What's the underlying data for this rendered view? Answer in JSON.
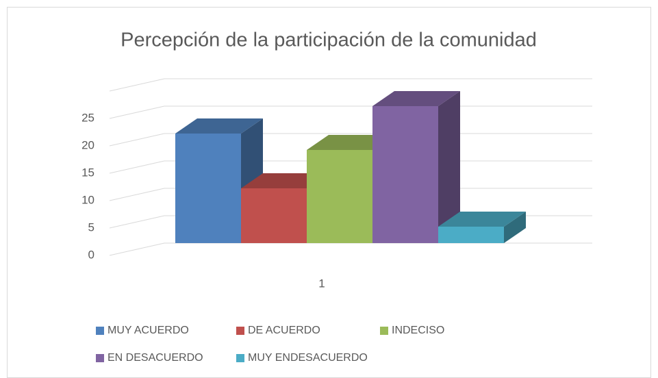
{
  "chart_data": {
    "type": "bar3d",
    "title": "Percepción de la participación de la comunidad",
    "categories": [
      "1"
    ],
    "series": [
      {
        "name": "MUY ACUERDO",
        "color": "#4f81bd",
        "values": [
          20
        ]
      },
      {
        "name": "DE ACUERDO",
        "color": "#c0504d",
        "values": [
          10
        ]
      },
      {
        "name": "INDECISO",
        "color": "#9bbb59",
        "values": [
          17
        ]
      },
      {
        "name": "EN DESACUERDO",
        "color": "#8064a2",
        "values": [
          25
        ]
      },
      {
        "name": "MUY ENDESACUERDO",
        "color": "#4bacc6",
        "values": [
          3
        ]
      }
    ],
    "ylim": [
      0,
      30
    ],
    "yticks": [
      0,
      5,
      10,
      15,
      20,
      25
    ],
    "grid": true,
    "legend": "bottom"
  }
}
